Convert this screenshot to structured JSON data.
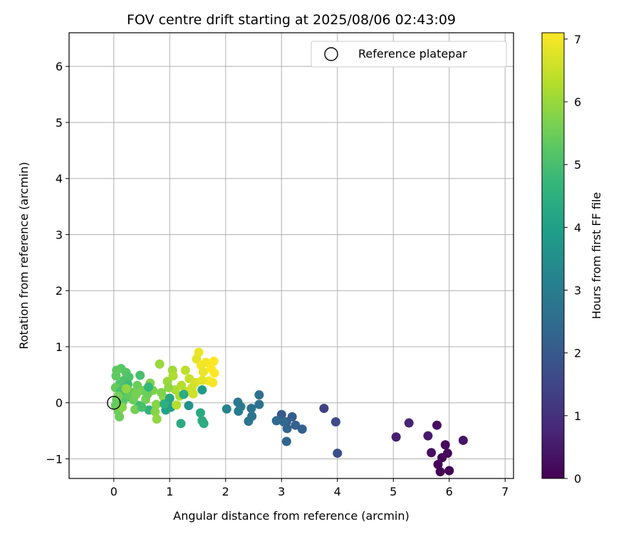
{
  "chart_data": {
    "type": "scatter",
    "title": "FOV centre drift starting at 2025/08/06 02:43:09",
    "xlabel": "Angular distance from reference (arcmin)",
    "ylabel": "Rotation from reference (arcmin)",
    "xlim": [
      -0.8,
      7.15
    ],
    "ylim": [
      -1.35,
      6.6
    ],
    "xticks": [
      0,
      1,
      2,
      3,
      4,
      5,
      6,
      7
    ],
    "yticks": [
      -1,
      0,
      1,
      2,
      3,
      4,
      5,
      6
    ],
    "grid": true,
    "legend": {
      "position": "top-right",
      "label": "Reference platepar",
      "marker": "open-circle"
    },
    "reference_point": {
      "x": 0,
      "y": 0
    },
    "colorbar": {
      "label": "Hours from first FF file",
      "range": [
        0,
        7.1
      ],
      "ticks": [
        0,
        1,
        2,
        3,
        4,
        5,
        6,
        7
      ],
      "colormap": "viridis",
      "colors": [
        "#440154",
        "#482878",
        "#3e4989",
        "#31688e",
        "#26828e",
        "#1f9e89",
        "#35b779",
        "#6ece58",
        "#b5de2b",
        "#fde725"
      ]
    },
    "points": [
      {
        "x": 5.78,
        "y": -0.4,
        "t": 0.3
      },
      {
        "x": 5.93,
        "y": -0.75,
        "t": 0.2
      },
      {
        "x": 5.97,
        "y": -0.9,
        "t": 0.2
      },
      {
        "x": 5.87,
        "y": -0.98,
        "t": 0.1
      },
      {
        "x": 5.8,
        "y": -1.1,
        "t": 0.1
      },
      {
        "x": 5.84,
        "y": -1.23,
        "t": 0.05
      },
      {
        "x": 6.0,
        "y": -1.21,
        "t": 0.05
      },
      {
        "x": 5.68,
        "y": -0.89,
        "t": 0.3
      },
      {
        "x": 5.62,
        "y": -0.59,
        "t": 0.5
      },
      {
        "x": 6.25,
        "y": -0.67,
        "t": 0.4
      },
      {
        "x": 5.28,
        "y": -0.36,
        "t": 0.7
      },
      {
        "x": 5.05,
        "y": -0.61,
        "t": 0.6
      },
      {
        "x": 3.76,
        "y": -0.1,
        "t": 1.4
      },
      {
        "x": 3.97,
        "y": -0.34,
        "t": 1.6
      },
      {
        "x": 4.0,
        "y": -0.9,
        "t": 1.7
      },
      {
        "x": 3.0,
        "y": -0.21,
        "t": 2.0
      },
      {
        "x": 3.09,
        "y": -0.34,
        "t": 2.1
      },
      {
        "x": 3.19,
        "y": -0.25,
        "t": 2.1
      },
      {
        "x": 3.25,
        "y": -0.4,
        "t": 2.2
      },
      {
        "x": 3.37,
        "y": -0.47,
        "t": 2.2
      },
      {
        "x": 3.1,
        "y": -0.46,
        "t": 2.3
      },
      {
        "x": 3.09,
        "y": -0.69,
        "t": 2.3
      },
      {
        "x": 2.91,
        "y": -0.32,
        "t": 2.4
      },
      {
        "x": 3.04,
        "y": -0.34,
        "t": 2.4
      },
      {
        "x": 2.6,
        "y": 0.14,
        "t": 2.6
      },
      {
        "x": 2.6,
        "y": -0.03,
        "t": 2.6
      },
      {
        "x": 2.46,
        "y": -0.1,
        "t": 2.7
      },
      {
        "x": 2.47,
        "y": -0.24,
        "t": 2.7
      },
      {
        "x": 2.41,
        "y": -0.33,
        "t": 2.8
      },
      {
        "x": 2.22,
        "y": 0.01,
        "t": 2.9
      },
      {
        "x": 2.27,
        "y": -0.07,
        "t": 2.9
      },
      {
        "x": 2.23,
        "y": -0.15,
        "t": 3.0
      },
      {
        "x": 2.02,
        "y": -0.11,
        "t": 3.2
      },
      {
        "x": 1.34,
        "y": -0.05,
        "t": 3.6
      },
      {
        "x": 1.58,
        "y": 0.23,
        "t": 3.9
      },
      {
        "x": 1.02,
        "y": -0.08,
        "t": 4.0
      },
      {
        "x": 0.93,
        "y": -0.13,
        "t": 4.1
      },
      {
        "x": 1.2,
        "y": -0.37,
        "t": 4.3
      },
      {
        "x": 1.55,
        "y": -0.18,
        "t": 4.3
      },
      {
        "x": 1.58,
        "y": -0.32,
        "t": 4.4
      },
      {
        "x": 1.61,
        "y": -0.37,
        "t": 4.4
      },
      {
        "x": 0.63,
        "y": -0.13,
        "t": 4.6
      },
      {
        "x": 0.45,
        "y": -0.05,
        "t": 4.8
      },
      {
        "x": 0.28,
        "y": 0.1,
        "t": 4.9
      },
      {
        "x": 0.47,
        "y": 0.49,
        "t": 5.0
      },
      {
        "x": 0.1,
        "y": 0.33,
        "t": 5.1
      },
      {
        "x": 0.18,
        "y": 0.4,
        "t": 5.1
      },
      {
        "x": 0.13,
        "y": 0.61,
        "t": 5.2
      },
      {
        "x": 0.05,
        "y": 0.58,
        "t": 5.3
      },
      {
        "x": 0.04,
        "y": 0.48,
        "t": 5.3
      },
      {
        "x": 0.22,
        "y": 0.54,
        "t": 5.2
      },
      {
        "x": 0.27,
        "y": 0.46,
        "t": 5.1
      },
      {
        "x": 0.03,
        "y": 0.27,
        "t": 5.4
      },
      {
        "x": 0.05,
        "y": 0.05,
        "t": 5.4
      },
      {
        "x": 0.03,
        "y": -0.05,
        "t": 5.4
      },
      {
        "x": 0.08,
        "y": -0.15,
        "t": 5.5
      },
      {
        "x": 0.1,
        "y": -0.25,
        "t": 5.5
      },
      {
        "x": 0.2,
        "y": 0.12,
        "t": 5.3
      },
      {
        "x": 0.31,
        "y": 0.19,
        "t": 5.4
      },
      {
        "x": 0.35,
        "y": 0.05,
        "t": 5.5
      },
      {
        "x": 0.4,
        "y": 0.15,
        "t": 5.6
      },
      {
        "x": 0.42,
        "y": 0.31,
        "t": 5.5
      },
      {
        "x": 0.52,
        "y": 0.22,
        "t": 5.6
      },
      {
        "x": 0.57,
        "y": 0.06,
        "t": 5.6
      },
      {
        "x": 0.65,
        "y": 0.35,
        "t": 5.7
      },
      {
        "x": 0.7,
        "y": 0.22,
        "t": 5.7
      },
      {
        "x": 0.76,
        "y": -0.03,
        "t": 5.8
      },
      {
        "x": 0.74,
        "y": -0.16,
        "t": 5.8
      },
      {
        "x": 0.77,
        "y": -0.29,
        "t": 5.9
      },
      {
        "x": 0.82,
        "y": 0.69,
        "t": 6.0
      },
      {
        "x": 0.89,
        "y": 0.1,
        "t": 5.9
      },
      {
        "x": 0.96,
        "y": 0.38,
        "t": 6.0
      },
      {
        "x": 1.05,
        "y": 0.58,
        "t": 6.1
      },
      {
        "x": 1.06,
        "y": 0.48,
        "t": 6.2
      },
      {
        "x": 1.1,
        "y": 0.23,
        "t": 6.2
      },
      {
        "x": 1.12,
        "y": -0.04,
        "t": 6.3
      },
      {
        "x": 1.21,
        "y": 0.31,
        "t": 6.3
      },
      {
        "x": 1.28,
        "y": 0.58,
        "t": 6.4
      },
      {
        "x": 1.35,
        "y": 0.43,
        "t": 6.5
      },
      {
        "x": 1.32,
        "y": 0.2,
        "t": 6.5
      },
      {
        "x": 1.42,
        "y": 0.16,
        "t": 6.6
      },
      {
        "x": 1.46,
        "y": 0.36,
        "t": 6.7
      },
      {
        "x": 1.48,
        "y": 0.78,
        "t": 6.8
      },
      {
        "x": 1.52,
        "y": 0.9,
        "t": 6.9
      },
      {
        "x": 1.56,
        "y": 0.67,
        "t": 7.0
      },
      {
        "x": 1.6,
        "y": 0.55,
        "t": 6.9
      },
      {
        "x": 1.65,
        "y": 0.72,
        "t": 7.0
      },
      {
        "x": 1.7,
        "y": 0.39,
        "t": 7.0
      },
      {
        "x": 1.74,
        "y": 0.61,
        "t": 7.1
      },
      {
        "x": 1.79,
        "y": 0.74,
        "t": 7.1
      },
      {
        "x": 1.8,
        "y": 0.53,
        "t": 7.1
      },
      {
        "x": 1.77,
        "y": 0.36,
        "t": 7.0
      },
      {
        "x": 1.58,
        "y": 0.4,
        "t": 6.8
      },
      {
        "x": 1.4,
        "y": 0.27,
        "t": 6.6
      },
      {
        "x": 1.18,
        "y": 0.12,
        "t": 6.2
      },
      {
        "x": 0.98,
        "y": 0.27,
        "t": 5.9
      },
      {
        "x": 0.85,
        "y": 0.18,
        "t": 5.7
      },
      {
        "x": 0.6,
        "y": 0.15,
        "t": 5.5
      },
      {
        "x": 0.16,
        "y": 0.02,
        "t": 5.2
      },
      {
        "x": 0.12,
        "y": 0.2,
        "t": 5.0
      },
      {
        "x": 0.25,
        "y": 0.33,
        "t": 4.9
      },
      {
        "x": 0.38,
        "y": -0.12,
        "t": 5.6
      },
      {
        "x": 0.5,
        "y": -0.08,
        "t": 5.0
      },
      {
        "x": 0.62,
        "y": 0.28,
        "t": 4.7
      },
      {
        "x": 0.9,
        "y": -0.02,
        "t": 4.5
      },
      {
        "x": 1.0,
        "y": 0.08,
        "t": 4.2
      },
      {
        "x": 1.25,
        "y": 0.15,
        "t": 4.4
      },
      {
        "x": 0.08,
        "y": 0.12,
        "t": 5.6
      },
      {
        "x": 0.15,
        "y": -0.08,
        "t": 5.8
      },
      {
        "x": 0.22,
        "y": 0.25,
        "t": 5.9
      }
    ]
  }
}
